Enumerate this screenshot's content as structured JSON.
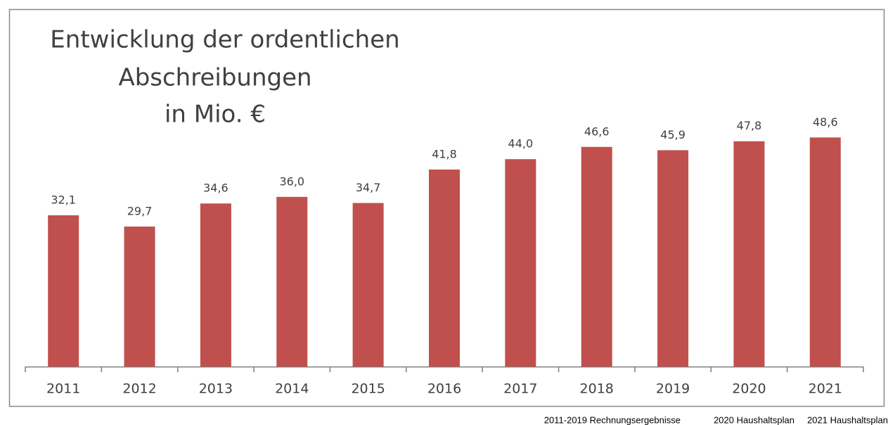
{
  "chart_data": {
    "type": "bar",
    "title": [
      "Entwicklung der ordentlichen",
      "Abschreibungen",
      "in Mio. €"
    ],
    "categories": [
      "2011",
      "2012",
      "2013",
      "2014",
      "2015",
      "2016",
      "2017",
      "2018",
      "2019",
      "2020",
      "2021"
    ],
    "values": [
      32.1,
      29.7,
      34.6,
      36.0,
      34.7,
      41.8,
      44.0,
      46.6,
      45.9,
      47.8,
      48.6
    ],
    "value_labels": [
      "32,1",
      "29,7",
      "34,6",
      "36,0",
      "34,7",
      "41,8",
      "44,0",
      "46,6",
      "45,9",
      "47,8",
      "48,6"
    ],
    "color": "#c0504d",
    "ylim": [
      0,
      60
    ],
    "notes": [
      "2011-2019 Rechnungsergebnisse",
      "2020 Haushaltsplan",
      "2021 Haushaltsplan"
    ]
  }
}
